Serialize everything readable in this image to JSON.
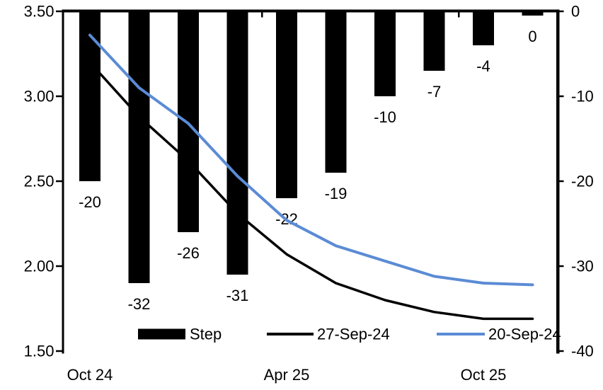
{
  "chart_data": {
    "type": "combo",
    "description": "Implied policy rate path (lines, left axis, %) and per-meeting step size (bars, right axis, bp)",
    "n_categories": 10,
    "x_tick_labels": [
      {
        "label": "Oct 24",
        "index": 0
      },
      {
        "label": "Apr 25",
        "index": 4
      },
      {
        "label": "Oct 25",
        "index": 8
      }
    ],
    "bar_series": {
      "name": "Step",
      "axis": "right",
      "color": "#000000",
      "values": [
        -20,
        -32,
        -26,
        -31,
        -22,
        -19,
        -10,
        -7,
        -4,
        0
      ],
      "data_labels": [
        "-20",
        "-32",
        "-26",
        "-31",
        "-22",
        "-19",
        "-10",
        "-7",
        "-4",
        "0"
      ]
    },
    "line_series": [
      {
        "name": "27-Sep-24",
        "axis": "left",
        "color": "#000000",
        "stroke_width": 3.5,
        "values": [
          3.2,
          2.88,
          2.62,
          2.31,
          2.07,
          1.9,
          1.8,
          1.73,
          1.69,
          1.69
        ]
      },
      {
        "name": "20-Sep-24",
        "axis": "left",
        "color": "#5B8BD5",
        "stroke_width": 4,
        "values": [
          3.36,
          3.05,
          2.84,
          2.53,
          2.27,
          2.12,
          2.03,
          1.94,
          1.9,
          1.89
        ]
      }
    ],
    "left_axis": {
      "min": 1.5,
      "max": 3.5,
      "ticks": [
        3.5,
        3.0,
        2.5,
        2.0,
        1.5
      ],
      "tick_labels": [
        "3.50",
        "3.00",
        "2.50",
        "2.00",
        "1.50"
      ]
    },
    "right_axis": {
      "min": -40,
      "max": 0,
      "ticks": [
        0,
        -10,
        -20,
        -30,
        -40
      ],
      "tick_labels": [
        "0",
        "-10",
        "-20",
        "-30",
        "-40"
      ]
    },
    "legend": {
      "position": "bottom-inside",
      "items": [
        {
          "label": "Step",
          "swatch": "bar",
          "color": "#000000"
        },
        {
          "label": "27-Sep-24",
          "swatch": "line",
          "color": "#000000"
        },
        {
          "label": "20-Sep-24",
          "swatch": "line",
          "color": "#5B8BD5"
        }
      ]
    },
    "grid": "off",
    "title": ""
  }
}
